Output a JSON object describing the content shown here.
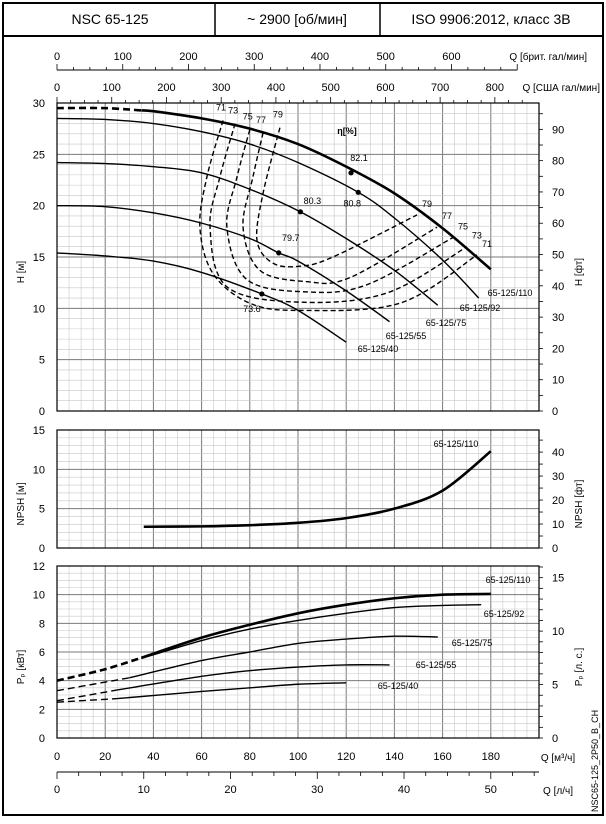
{
  "header": {
    "model": "NSC 65-125",
    "speed": "~ 2900 [об/мин]",
    "standard": "ISO 9906:2012, класс 3B"
  },
  "chart_code": "NSC65-125_2P50_B_CH",
  "colors": {
    "curve": "#000000",
    "grid_major": "#7a7a7a",
    "grid_minor": "#c8c8c8"
  },
  "chart_data": [
    {
      "type": "line",
      "title": "",
      "xlabel": "Q [м³/ч]",
      "ylabel": "H [м]",
      "ylabel_right": "H [фт]",
      "xlim": [
        0,
        200
      ],
      "ylim": [
        0,
        30
      ],
      "ylim_right_ft": [
        0,
        98.4
      ],
      "yticks": [
        0,
        5,
        10,
        15,
        20,
        25,
        30
      ],
      "yticks_right": [
        0,
        10,
        20,
        30,
        40,
        50,
        60,
        70,
        80,
        90
      ],
      "top_axes": [
        {
          "label": "Q [брит. гал/мин]",
          "ticks": [
            0,
            100,
            200,
            300,
            400,
            500,
            600
          ]
        },
        {
          "label": "Q [США гал/мин]",
          "ticks": [
            0,
            100,
            200,
            300,
            400,
            500,
            600,
            700,
            800
          ]
        }
      ],
      "grid": true,
      "efficiency_label": "η[%]",
      "series": [
        {
          "name": "65-125/110",
          "dashed_until": 35,
          "x": [
            0,
            20,
            40,
            60,
            80,
            100,
            120,
            140,
            160,
            180
          ],
          "y": [
            29.5,
            29.5,
            29.2,
            28.5,
            27.5,
            26,
            23.8,
            21.2,
            17.8,
            13.8
          ]
        },
        {
          "name": "65-125/92",
          "dashed_until": 0,
          "x": [
            0,
            20,
            40,
            60,
            80,
            100,
            125,
            140,
            160,
            175
          ],
          "y": [
            28.5,
            28.4,
            28,
            27.2,
            26,
            24.2,
            21.3,
            18.8,
            14.7,
            11
          ]
        },
        {
          "name": "65-125/75",
          "dashed_until": 0,
          "x": [
            0,
            20,
            40,
            60,
            80,
            101,
            120,
            140,
            158
          ],
          "y": [
            24.2,
            24.1,
            23.8,
            23.2,
            21.6,
            19.4,
            16.8,
            13.7,
            10.3
          ]
        },
        {
          "name": "65-125/55",
          "dashed_until": 0,
          "x": [
            0,
            20,
            40,
            60,
            80,
            92,
            100,
            120,
            138
          ],
          "y": [
            20,
            19.9,
            19.3,
            18.3,
            16.8,
            15.4,
            14.6,
            11.7,
            8.7
          ]
        },
        {
          "name": "65-125/40",
          "dashed_until": 0,
          "x": [
            0,
            20,
            40,
            60,
            85,
            100,
            120
          ],
          "y": [
            15.4,
            15.1,
            14.6,
            13.5,
            11.4,
            9.8,
            6.7
          ]
        }
      ],
      "bep_points": [
        {
          "series": "65-125/110",
          "x": 122,
          "y": 23.2,
          "efficiency": "82.1"
        },
        {
          "series": "65-125/92",
          "x": 125,
          "y": 21.3,
          "efficiency": "80.8"
        },
        {
          "series": "65-125/75",
          "x": 101,
          "y": 19.4,
          "efficiency": "80.3"
        },
        {
          "series": "65-125/55",
          "x": 92,
          "y": 15.4,
          "efficiency": "79.7"
        },
        {
          "series": "65-125/40",
          "x": 85,
          "y": 11.4,
          "efficiency": "73.6"
        }
      ],
      "efficiency_curves": [
        {
          "label": "71",
          "x": [
            68.9,
            62.2,
            59.3,
            64.7,
            80,
            100.8,
            142.3,
            174.3
          ],
          "y": [
            28.3,
            22.8,
            17.9,
            13.4,
            10.5,
            9.8,
            10.5,
            15.2
          ]
        },
        {
          "label": "73",
          "x": [
            73.9,
            67.6,
            63.5,
            70.5,
            100.8,
            136.9,
            170.1
          ],
          "y": [
            28,
            22.8,
            17.9,
            12.1,
            10.6,
            11.5,
            16
          ]
        },
        {
          "label": "75",
          "x": [
            80,
            74.7,
            70.5,
            78.8,
            103.7,
            128.6,
            164.3
          ],
          "y": [
            27.4,
            22.8,
            17.9,
            12.8,
            11.6,
            12.3,
            16.9
          ]
        },
        {
          "label": "77",
          "x": [
            85.5,
            81.3,
            77.2,
            84.2,
            103.7,
            121.6,
            157.7
          ],
          "y": [
            27.1,
            22.8,
            17.9,
            13.7,
            12.6,
            13,
            17.9
          ]
        },
        {
          "label": "79",
          "x": [
            92.5,
            85.5,
            83,
            89.6,
            100.8,
            114.5,
            149.4
          ],
          "y": [
            27.6,
            21.2,
            16.6,
            14.4,
            14.1,
            15,
            19.1
          ]
        }
      ]
    },
    {
      "type": "line",
      "xlabel": "Q [м³/ч]",
      "ylabel": "NPSH [м]",
      "ylabel_right": "NPSH [фт]",
      "xlim": [
        0,
        200
      ],
      "ylim": [
        0,
        15
      ],
      "yticks": [
        0,
        5,
        10,
        15
      ],
      "yticks_right": [
        0,
        10,
        20,
        30,
        40
      ],
      "grid": true,
      "series": [
        {
          "name": "65-125/110",
          "x": [
            36,
            60,
            80,
            100,
            120,
            140,
            160,
            180
          ],
          "y": [
            2.7,
            2.75,
            2.9,
            3.2,
            3.8,
            5.0,
            7.3,
            12.3
          ]
        }
      ]
    },
    {
      "type": "line",
      "xlabel": "Q [м³/ч]",
      "xlabel2": "Q [л/ч]",
      "ylabel": "Pₚ [кВт]",
      "ylabel_right": "Pₚ [л. с.]",
      "xlim": [
        0,
        200
      ],
      "ylim": [
        0,
        12
      ],
      "xticks": [
        0,
        20,
        40,
        60,
        80,
        100,
        120,
        140,
        160,
        180
      ],
      "xticks2": [
        0,
        10,
        20,
        30,
        40,
        50
      ],
      "yticks": [
        0,
        2,
        4,
        6,
        8,
        10,
        12
      ],
      "yticks_right": [
        0,
        5,
        10,
        15
      ],
      "grid": true,
      "series": [
        {
          "name": "65-125/110",
          "dashed_until": 35,
          "x": [
            0,
            20,
            35,
            60,
            80,
            100,
            120,
            140,
            160,
            180
          ],
          "y": [
            4.0,
            4.8,
            5.6,
            7.0,
            7.9,
            8.7,
            9.3,
            9.75,
            10.0,
            10.05
          ]
        },
        {
          "name": "65-125/92",
          "dashed_until": 35,
          "x": [
            0,
            20,
            35,
            60,
            80,
            100,
            120,
            140,
            160,
            176
          ],
          "y": [
            4.0,
            4.8,
            5.55,
            6.8,
            7.6,
            8.2,
            8.7,
            9.1,
            9.25,
            9.3
          ]
        },
        {
          "name": "65-125/75",
          "dashed_until": 30,
          "x": [
            0,
            30,
            60,
            80,
            100,
            120,
            140,
            158
          ],
          "y": [
            3.3,
            4.2,
            5.4,
            6.0,
            6.6,
            6.9,
            7.1,
            7.05
          ]
        },
        {
          "name": "65-125/55",
          "dashed_until": 25,
          "x": [
            0,
            25,
            60,
            80,
            100,
            120,
            138
          ],
          "y": [
            2.6,
            3.35,
            4.3,
            4.7,
            4.95,
            5.1,
            5.1
          ]
        },
        {
          "name": "65-125/40",
          "dashed_until": 25,
          "x": [
            0,
            25,
            60,
            80,
            100,
            120
          ],
          "y": [
            2.5,
            2.75,
            3.25,
            3.5,
            3.75,
            3.85
          ]
        }
      ]
    }
  ]
}
